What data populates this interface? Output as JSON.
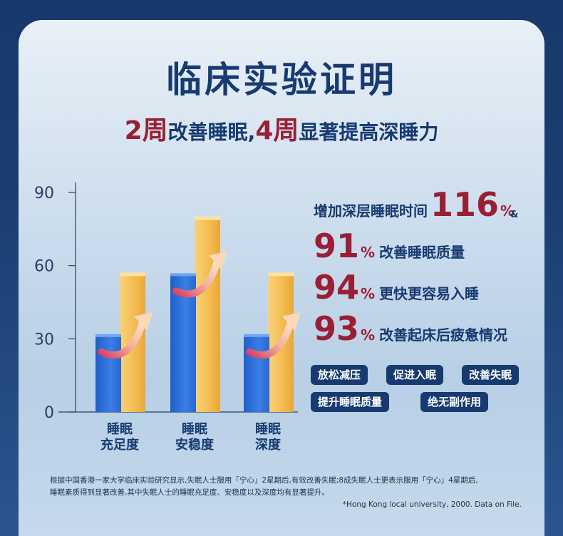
{
  "title": "临床实验证明",
  "subtitle": {
    "num1": "2周",
    "text1": "改善睡眠,",
    "num2": "4周",
    "text2": "显著提高深睡力"
  },
  "chart_data": {
    "type": "bar",
    "categories": [
      "睡眠\n充足度",
      "睡眠\n安稳度",
      "睡眠\n深度"
    ],
    "category_lines": [
      [
        "睡眠",
        "充足度"
      ],
      [
        "睡眠",
        "安稳度"
      ],
      [
        "睡眠",
        "深度"
      ]
    ],
    "series": [
      {
        "color": "#2f6fd6",
        "values": [
          31,
          56,
          31
        ]
      },
      {
        "color": "#f2b84a",
        "values": [
          56,
          79,
          56
        ]
      }
    ],
    "yticks": [
      0,
      30,
      60,
      90
    ],
    "ylim": [
      0,
      90
    ],
    "arrow_color": "#f0a070"
  },
  "stats": {
    "main": {
      "text": "增加深层睡眠时间",
      "value": "116",
      "unit": "%",
      "note": "&"
    },
    "items": [
      {
        "value": "91",
        "unit": "%",
        "text": "改善睡眠质量"
      },
      {
        "value": "94",
        "unit": "%",
        "text": "更快更容易入睡"
      },
      {
        "value": "93",
        "unit": "%",
        "text": "改善起床后疲惫情况"
      }
    ]
  },
  "badges": [
    "放松减压",
    "促进入眠",
    "改善失眠",
    "提升睡眠质量",
    "绝无副作用"
  ],
  "footnote": {
    "line1": "根据中国香港一家大学临床实验研究显示,失眠人士服用「宁心」2星期后,有效改善失眠;8成失眠人士更表示服用「宁心」4星期后,",
    "line2": "睡眠素质得到显著改善,其中失眠人士的睡眠充足度、安稳度以及深度均有显著提升。"
  },
  "source": "*Hong Kong local university, 2000. Data on File.",
  "colors": {
    "navy": "#173a70",
    "red": "#9a1f35"
  }
}
